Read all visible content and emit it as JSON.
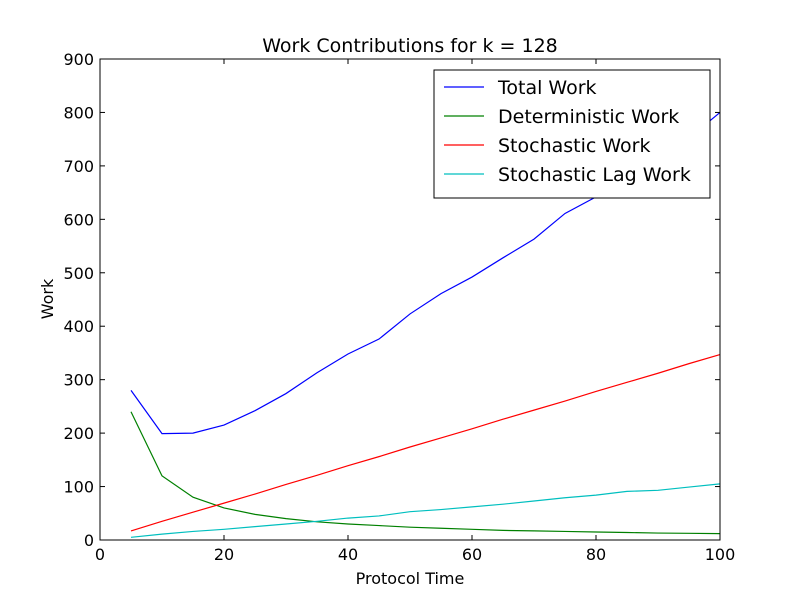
{
  "chart_data": {
    "type": "line",
    "title": "Work Contributions for k = 128",
    "xlabel": "Protocol Time",
    "ylabel": "Work",
    "xlim": [
      0,
      100
    ],
    "ylim": [
      0,
      900
    ],
    "xticks": [
      0,
      20,
      40,
      60,
      80,
      100
    ],
    "yticks": [
      0,
      100,
      200,
      300,
      400,
      500,
      600,
      700,
      800,
      900
    ],
    "grid": false,
    "legend_position": "top-right",
    "x": [
      5,
      10,
      15,
      20,
      25,
      30,
      35,
      40,
      45,
      50,
      55,
      60,
      65,
      70,
      75,
      80,
      85,
      90,
      95,
      100
    ],
    "series": [
      {
        "name": "Total Work",
        "color": "#0000ff",
        "values": [
          280,
          199,
          200,
          215,
          242,
          274,
          313,
          348,
          376,
          423,
          461,
          492,
          528,
          563,
          611,
          642,
          690,
          718,
          752,
          800
        ]
      },
      {
        "name": "Deterministic Work",
        "color": "#008000",
        "values": [
          240,
          120,
          80,
          60,
          48,
          40,
          34,
          30,
          27,
          24,
          22,
          20,
          18,
          17,
          16,
          15,
          14,
          13,
          12.5,
          12
        ]
      },
      {
        "name": "Stochastic Work",
        "color": "#ff0000",
        "values": [
          17,
          35,
          52,
          69,
          86,
          104,
          121,
          139,
          156,
          174,
          191,
          208,
          226,
          243,
          260,
          278,
          295,
          312,
          330,
          347
        ]
      },
      {
        "name": "Stochastic Lag Work",
        "color": "#00bfbf",
        "values": [
          5,
          11,
          16,
          20,
          25,
          30,
          35,
          41,
          45,
          53,
          57,
          62,
          67,
          73,
          79,
          84,
          91,
          93,
          99,
          105
        ]
      }
    ]
  }
}
